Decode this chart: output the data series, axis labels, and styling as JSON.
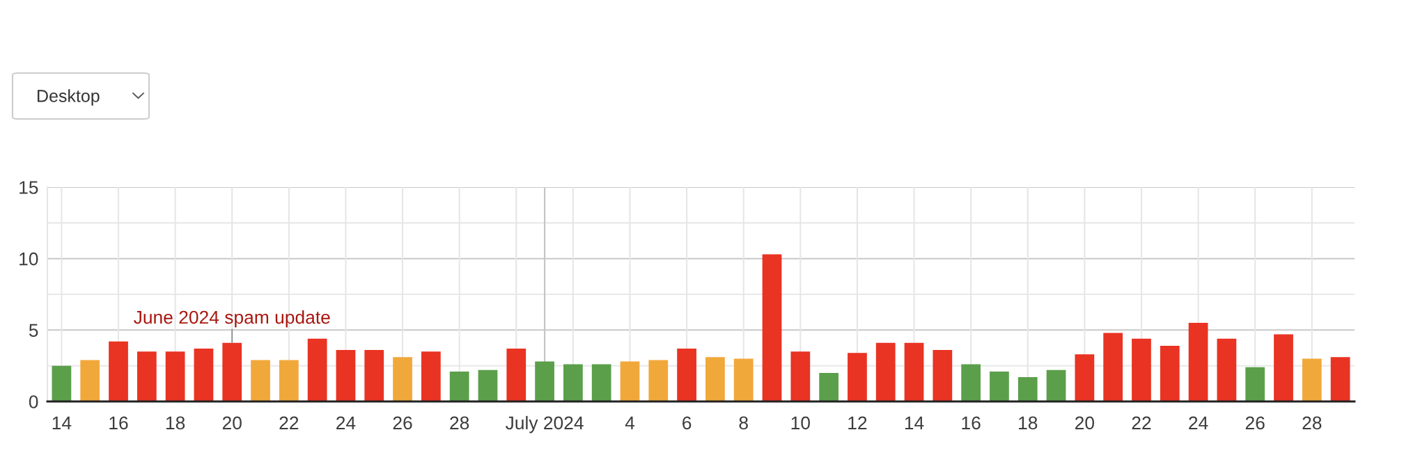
{
  "chart_data": {
    "type": "bar",
    "x": [
      "2024-06-14",
      "2024-06-15",
      "2024-06-16",
      "2024-06-17",
      "2024-06-18",
      "2024-06-19",
      "2024-06-20",
      "2024-06-21",
      "2024-06-22",
      "2024-06-23",
      "2024-06-24",
      "2024-06-25",
      "2024-06-26",
      "2024-06-27",
      "2024-06-28",
      "2024-06-29",
      "2024-06-30",
      "2024-07-01",
      "2024-07-02",
      "2024-07-03",
      "2024-07-04",
      "2024-07-05",
      "2024-07-06",
      "2024-07-07",
      "2024-07-08",
      "2024-07-09",
      "2024-07-10",
      "2024-07-11",
      "2024-07-12",
      "2024-07-13",
      "2024-07-14",
      "2024-07-15",
      "2024-07-16",
      "2024-07-17",
      "2024-07-18",
      "2024-07-19",
      "2024-07-20",
      "2024-07-21",
      "2024-07-22",
      "2024-07-23",
      "2024-07-24",
      "2024-07-25",
      "2024-07-26",
      "2024-07-27",
      "2024-07-28",
      "2024-07-29"
    ],
    "values": [
      2.5,
      2.9,
      4.2,
      3.5,
      3.5,
      3.7,
      4.1,
      2.9,
      2.9,
      4.4,
      3.6,
      3.6,
      3.1,
      3.5,
      2.1,
      2.2,
      3.7,
      2.8,
      2.6,
      2.6,
      2.8,
      2.9,
      3.7,
      3.1,
      3.0,
      10.3,
      3.5,
      2.0,
      3.4,
      4.1,
      4.1,
      3.6,
      2.6,
      2.1,
      1.7,
      2.2,
      3.3,
      4.8,
      4.4,
      3.9,
      5.5,
      4.4,
      2.4,
      4.7,
      3.0,
      3.1
    ],
    "colors": [
      "#5b9f4a",
      "#f1a83b",
      "#e93323",
      "#e93323",
      "#e93323",
      "#e93323",
      "#e93323",
      "#f1a83b",
      "#f1a83b",
      "#e93323",
      "#e93323",
      "#e93323",
      "#f1a83b",
      "#e93323",
      "#5b9f4a",
      "#5b9f4a",
      "#e93323",
      "#5b9f4a",
      "#5b9f4a",
      "#5b9f4a",
      "#f1a83b",
      "#f1a83b",
      "#e93323",
      "#f1a83b",
      "#f1a83b",
      "#e93323",
      "#e93323",
      "#5b9f4a",
      "#e93323",
      "#e93323",
      "#e93323",
      "#e93323",
      "#5b9f4a",
      "#5b9f4a",
      "#5b9f4a",
      "#5b9f4a",
      "#e93323",
      "#e93323",
      "#e93323",
      "#e93323",
      "#e93323",
      "#e93323",
      "#5b9f4a",
      "#e93323",
      "#f1a83b",
      "#e93323"
    ],
    "xlim": [
      "2024-06-13T12:00",
      "2024-07-29T12:00"
    ],
    "xticks": [
      {
        "value": "2024-06-14",
        "label": "14"
      },
      {
        "value": "2024-06-16",
        "label": "16"
      },
      {
        "value": "2024-06-18",
        "label": "18"
      },
      {
        "value": "2024-06-20",
        "label": "20"
      },
      {
        "value": "2024-06-22",
        "label": "22"
      },
      {
        "value": "2024-06-24",
        "label": "24"
      },
      {
        "value": "2024-06-26",
        "label": "26"
      },
      {
        "value": "2024-06-28",
        "label": "28"
      },
      {
        "value": "2024-06-30",
        "label": null
      },
      {
        "value": "2024-07-01",
        "label": "July 2024"
      },
      {
        "value": "2024-07-02",
        "label": null
      },
      {
        "value": "2024-07-04",
        "label": "4"
      },
      {
        "value": "2024-07-06",
        "label": "6"
      },
      {
        "value": "2024-07-08",
        "label": "8"
      },
      {
        "value": "2024-07-10",
        "label": "10"
      },
      {
        "value": "2024-07-12",
        "label": "12"
      },
      {
        "value": "2024-07-14",
        "label": "14"
      },
      {
        "value": "2024-07-16",
        "label": "16"
      },
      {
        "value": "2024-07-18",
        "label": "18"
      },
      {
        "value": "2024-07-20",
        "label": "20"
      },
      {
        "value": "2024-07-22",
        "label": "22"
      },
      {
        "value": "2024-07-24",
        "label": "24"
      },
      {
        "value": "2024-07-26",
        "label": "26"
      },
      {
        "value": "2024-07-28",
        "label": "28"
      }
    ],
    "ylim": [
      0,
      15
    ],
    "yticks": [
      0,
      {
        "value": 2.5,
        "label": null
      },
      5,
      {
        "value": 7.5,
        "label": null
      },
      10,
      {
        "value": 12.5,
        "label": null
      },
      15
    ],
    "grid": true,
    "ref_lines": [
      {
        "axis": "x",
        "value": "2024-07-01",
        "color": "#c4c4c4"
      }
    ],
    "annotations": [
      "Desktop",
      {
        "text": "June 2024 spam update",
        "x": "2024-06-20",
        "y": 4.1
      }
    ]
  }
}
